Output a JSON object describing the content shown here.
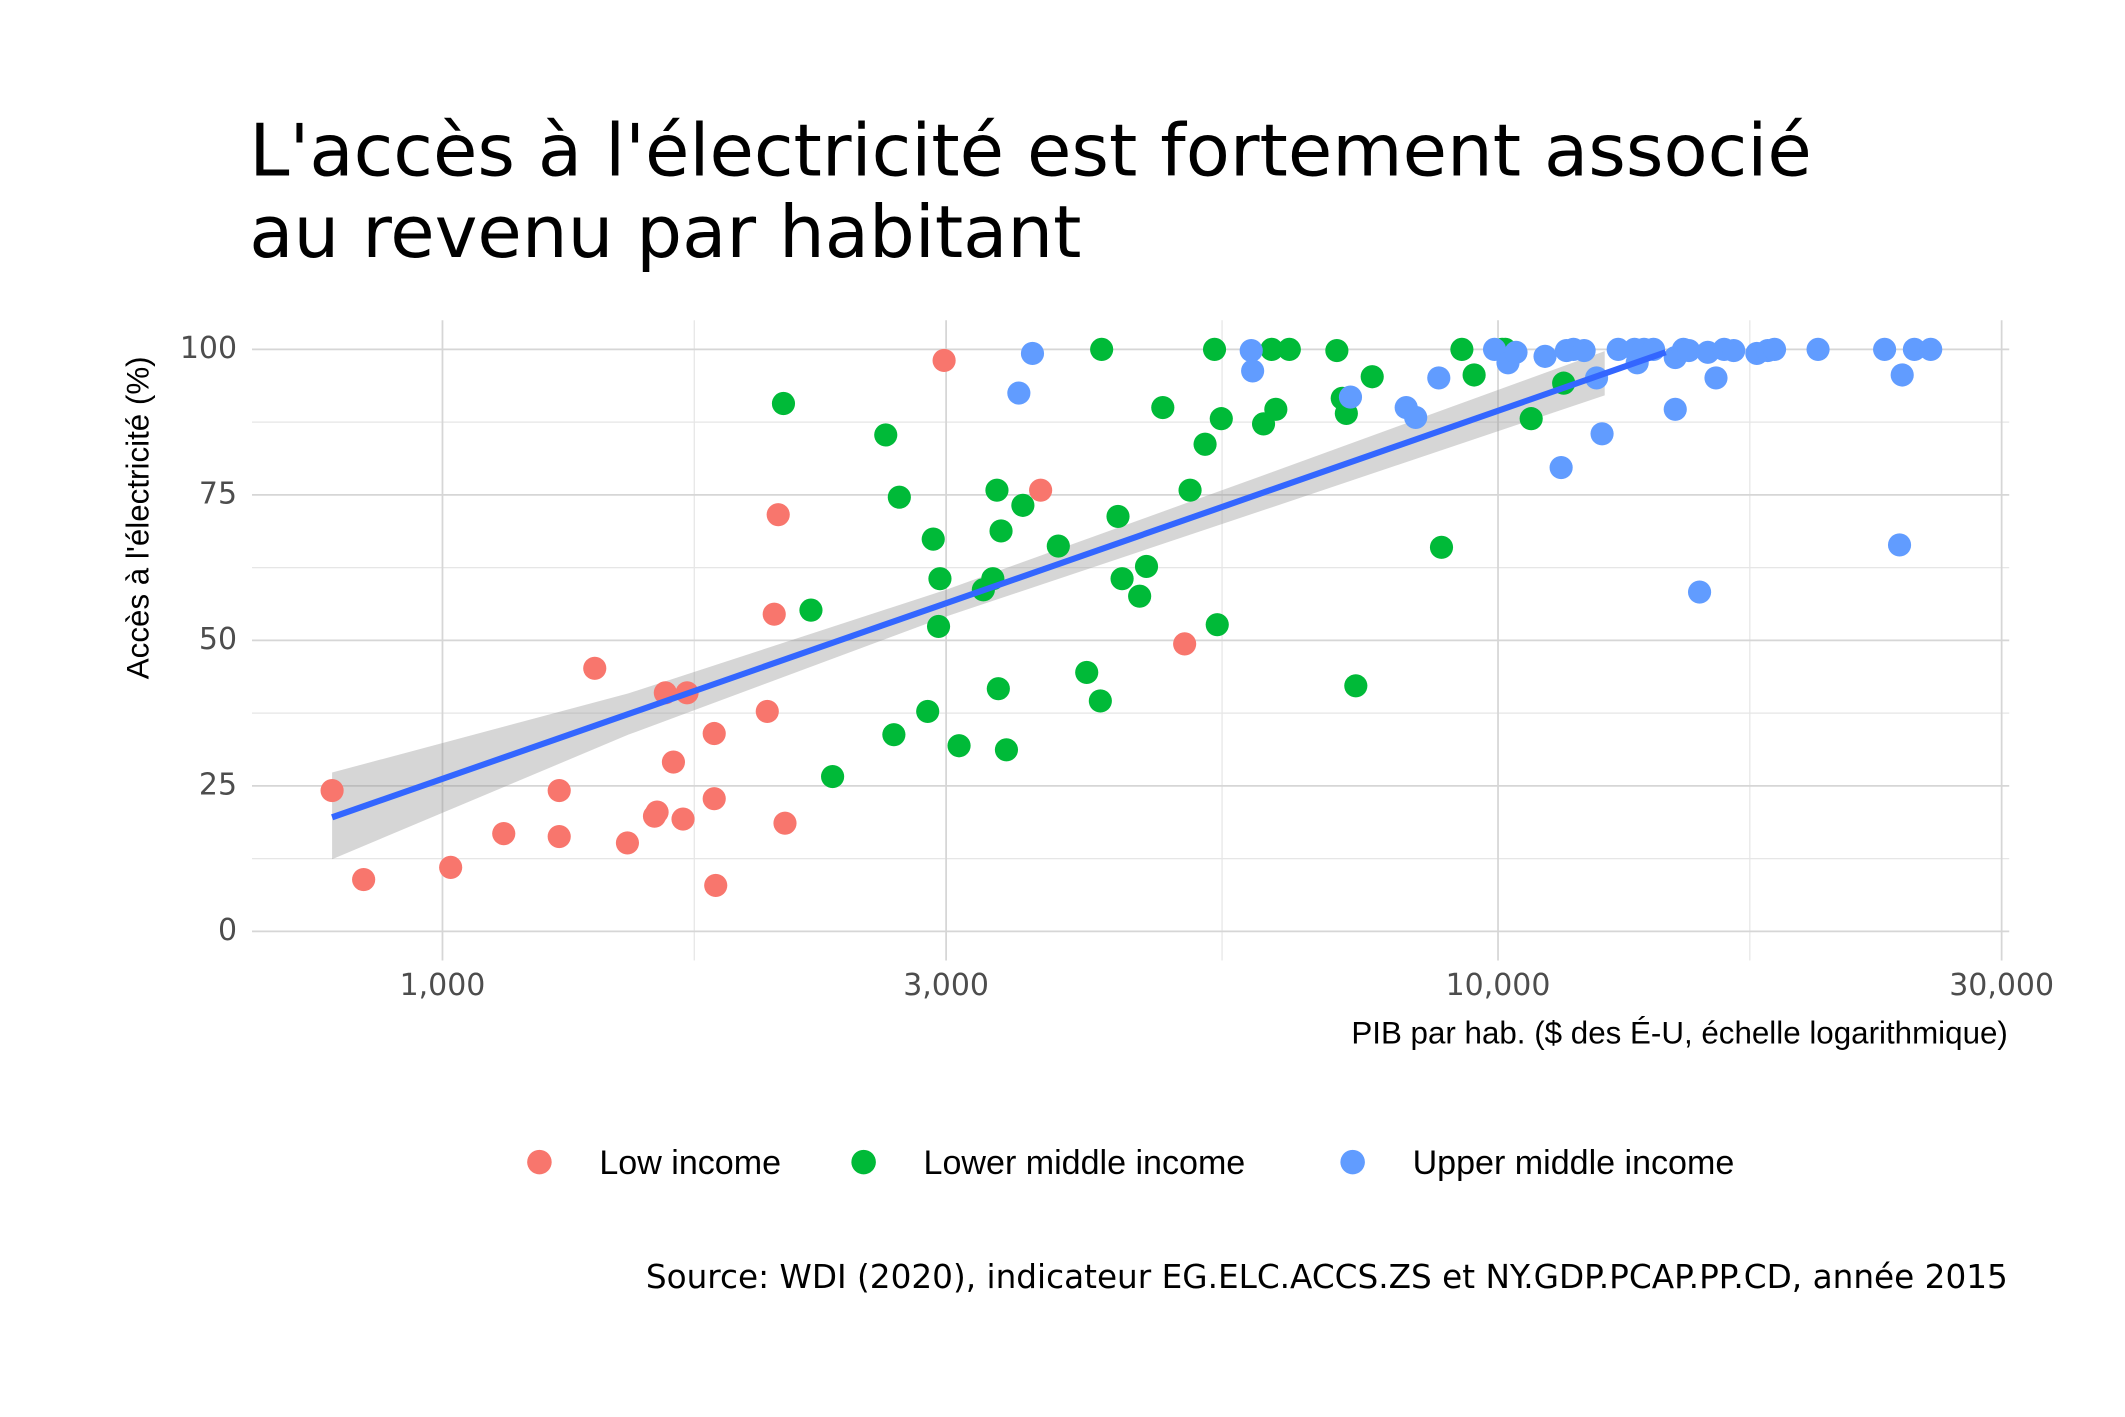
{
  "chart_data": {
    "type": "scatter",
    "title": [
      "L'accès à l'électricité est fortement associé",
      "au revenu par habitant"
    ],
    "x_label": "PIB par hab. ($ des É-U, échelle logarithmique)",
    "y_label": "Accès à l'électricité (%)",
    "source": "Source: WDI (2020), indicateur EG.ELC.ACCS.ZS et NY.GDP.PCAP.PP.CD, année 2015",
    "x_log": true,
    "grid": true,
    "legend_position": "bottom",
    "xlim": [
      660,
      30500
    ],
    "ylim": [
      -5,
      105
    ],
    "xticks": [
      {
        "value": 1000,
        "label": "1,000"
      },
      {
        "value": 3000,
        "label": "3,000"
      },
      {
        "value": 10000,
        "label": "10,000"
      },
      {
        "value": 30000,
        "label": "30,000"
      }
    ],
    "minor_xticks": [
      1732,
      5477,
      17320
    ],
    "yticks": [
      0,
      25,
      50,
      75,
      100
    ],
    "minor_yticks": [
      12.5,
      37.5,
      62.5,
      87.5
    ],
    "series": [
      {
        "name": "Low income",
        "color": "#F8766D",
        "x": [
          786,
          842,
          1018,
          1143,
          1290,
          1290,
          1394,
          1497,
          1588,
          1597,
          1626,
          1655,
          1690,
          1705,
          1809,
          1809,
          1815,
          2031,
          2062,
          2080,
          2111,
          2987,
          3687,
          5048
        ],
        "values": [
          24.2,
          8.9,
          11.0,
          16.8,
          24.2,
          16.3,
          45.2,
          15.2,
          19.8,
          20.5,
          41.0,
          29.1,
          19.3,
          41.0,
          34.0,
          22.8,
          7.9,
          37.8,
          54.5,
          71.6,
          18.6,
          98.1,
          75.8,
          49.4
        ]
      },
      {
        "name": "Lower middle income",
        "color": "#00BA38",
        "x": [
          2104,
          2234,
          2342,
          2630,
          2677,
          2709,
          2882,
          2917,
          2960,
          2951,
          3086,
          3254,
          3322,
          3352,
          3362,
          3382,
          3422,
          3547,
          3832,
          4077,
          4200,
          4212,
          4365,
          4404,
          4576,
          4645,
          4813,
          5108,
          5278,
          5388,
          5420,
          5468,
          5996,
          6104,
          6159,
          6343,
          7036,
          7119,
          7183,
          7333,
          7600,
          8840,
          9242,
          9492,
          10090,
          10160,
          10750,
          11540
        ],
        "values": [
          90.7,
          55.2,
          26.6,
          85.3,
          33.8,
          74.6,
          37.8,
          67.4,
          60.6,
          52.4,
          31.9,
          58.7,
          60.6,
          75.8,
          41.7,
          68.8,
          31.2,
          73.2,
          66.2,
          44.5,
          39.6,
          100,
          71.3,
          60.6,
          57.6,
          62.7,
          90.0,
          75.8,
          83.7,
          100,
          52.7,
          88.1,
          87.2,
          100,
          89.7,
          100,
          99.8,
          91.6,
          89.0,
          42.2,
          95.3,
          66.0,
          100,
          95.6,
          100,
          100,
          88.1,
          94.2
        ]
      },
      {
        "name": "Upper middle income",
        "color": "#619CFF",
        "x": [
          3516,
          3622,
          5837,
          5855,
          7248,
          8185,
          8356,
          8788,
          9924,
          10220,
          10400,
          11080,
          11476,
          11610,
          11790,
          12066,
          12398,
          12548,
          12997,
          13468,
          13547,
          13751,
          14040,
          14720,
          14720,
          14985,
          15165,
          15522,
          15804,
          16088,
          16376,
          16722,
          17588,
          18010,
          18280,
          20100,
          23240,
          24010,
          24150,
          24800,
          25700
        ],
        "values": [
          92.5,
          99.3,
          99.8,
          96.3,
          91.8,
          90.0,
          88.3,
          95.1,
          100,
          97.7,
          99.5,
          98.8,
          79.7,
          99.8,
          100,
          99.8,
          95.1,
          85.5,
          100,
          100,
          97.7,
          100,
          100,
          89.7,
          98.6,
          100,
          99.8,
          58.3,
          99.5,
          95.1,
          100,
          99.8,
          99.3,
          99.8,
          100,
          100,
          100,
          66.4,
          95.6,
          100,
          100
        ]
      }
    ],
    "trend": {
      "color": "#3366FF",
      "x": [
        786,
        14415
      ],
      "values": [
        19.6,
        99.5
      ]
    },
    "confidence_band": {
      "color": "#999999",
      "x": [
        786,
        1500,
        3000,
        6000,
        12620
      ],
      "lower": [
        12.4,
        33.8,
        54.1,
        72.4,
        92.1
      ],
      "upper": [
        27.3,
        40.9,
        58.7,
        78.4,
        99.7
      ]
    }
  }
}
